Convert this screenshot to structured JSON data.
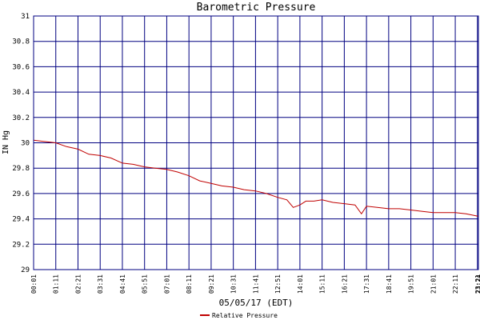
{
  "chart_data": {
    "type": "line",
    "title": "Barometric Pressure",
    "xlabel": "05/05/17 (EDT)",
    "ylabel": "IN Hg",
    "ylim": [
      29,
      31
    ],
    "y_ticks": [
      "29",
      "29.2",
      "29.4",
      "29.6",
      "29.8",
      "30",
      "30.2",
      "30.4",
      "30.6",
      "30.8",
      "31"
    ],
    "x_ticks": [
      "00:01",
      "01:11",
      "02:21",
      "03:31",
      "04:41",
      "05:51",
      "07:01",
      "08:11",
      "09:21",
      "10:31",
      "11:41",
      "12:51",
      "14:01",
      "15:11",
      "16:21",
      "17:31",
      "18:41",
      "19:51",
      "21:01",
      "22:11",
      "23:21",
      "23:24"
    ],
    "grid": true,
    "legend_position": "bottom-center",
    "series": [
      {
        "name": "Relative Pressure",
        "color": "#c00000",
        "x": [
          "00:01",
          "00:35",
          "01:11",
          "01:45",
          "02:21",
          "02:55",
          "03:31",
          "04:05",
          "04:41",
          "05:15",
          "05:51",
          "06:25",
          "07:01",
          "07:35",
          "08:11",
          "08:45",
          "09:21",
          "09:55",
          "10:31",
          "11:05",
          "11:41",
          "12:15",
          "12:51",
          "13:20",
          "13:40",
          "14:01",
          "14:20",
          "14:45",
          "15:11",
          "15:45",
          "16:21",
          "16:55",
          "17:15",
          "17:31",
          "18:05",
          "18:41",
          "19:15",
          "19:51",
          "20:25",
          "21:01",
          "21:35",
          "22:11",
          "22:45",
          "23:24"
        ],
        "values": [
          30.02,
          30.01,
          30.0,
          29.97,
          29.95,
          29.91,
          29.9,
          29.88,
          29.84,
          29.83,
          29.81,
          29.8,
          29.79,
          29.77,
          29.74,
          29.7,
          29.68,
          29.66,
          29.65,
          29.63,
          29.62,
          29.6,
          29.57,
          29.55,
          29.49,
          29.51,
          29.54,
          29.54,
          29.55,
          29.53,
          29.52,
          29.51,
          29.44,
          29.5,
          29.49,
          29.48,
          29.48,
          29.47,
          29.46,
          29.45,
          29.45,
          29.45,
          29.44,
          29.42
        ]
      }
    ]
  }
}
